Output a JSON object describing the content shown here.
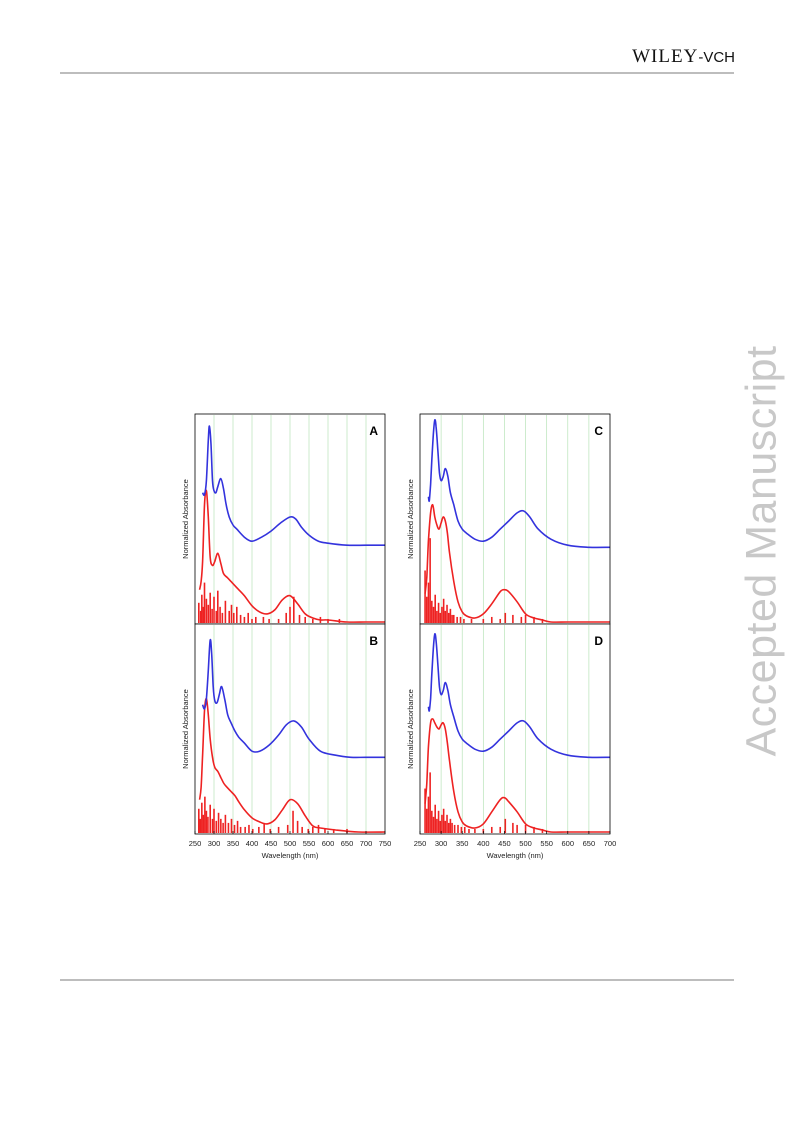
{
  "header": {
    "logo_wiley": "WILEY",
    "logo_vch": "-VCH"
  },
  "watermark": "Accepted Manuscript",
  "chart_data": [
    {
      "type": "line",
      "panel": "A",
      "xlim": [
        250,
        750
      ],
      "xlabel": "",
      "ylabel": "Normalized Absorbance",
      "xticks": [],
      "grid": true,
      "line_colors": {
        "upper": "#3333dd",
        "lower": "#ee2222"
      },
      "upper": {
        "x": [
          270,
          275,
          280,
          285,
          288,
          292,
          296,
          300,
          305,
          310,
          318,
          325,
          332,
          340,
          350,
          360,
          380,
          400,
          425,
          450,
          475,
          500,
          515,
          530,
          550,
          575,
          600,
          650,
          700,
          750
        ],
        "y": [
          0.64,
          0.63,
          0.7,
          0.9,
          0.97,
          0.88,
          0.7,
          0.65,
          0.64,
          0.67,
          0.71,
          0.66,
          0.58,
          0.52,
          0.48,
          0.46,
          0.42,
          0.4,
          0.42,
          0.45,
          0.49,
          0.52,
          0.51,
          0.47,
          0.43,
          0.4,
          0.39,
          0.38,
          0.38,
          0.38
        ]
      },
      "lower": {
        "x": [
          262,
          266,
          270,
          275,
          280,
          285,
          290,
          296,
          302,
          310,
          318,
          325,
          335,
          345,
          360,
          380,
          400,
          420,
          440,
          460,
          480,
          500,
          520,
          540,
          560,
          580,
          600,
          650,
          700,
          750
        ],
        "y": [
          0.16,
          0.2,
          0.3,
          0.58,
          0.65,
          0.52,
          0.32,
          0.28,
          0.3,
          0.34,
          0.29,
          0.24,
          0.22,
          0.2,
          0.17,
          0.13,
          0.08,
          0.05,
          0.04,
          0.06,
          0.11,
          0.13,
          0.09,
          0.04,
          0.02,
          0.01,
          0.01,
          0.0,
          0.0,
          0.0
        ]
      },
      "sticks": {
        "x": [
          260,
          265,
          268,
          272,
          275,
          280,
          285,
          290,
          295,
          300,
          306,
          310,
          316,
          322,
          330,
          340,
          346,
          352,
          360,
          370,
          380,
          390,
          400,
          410,
          430,
          445,
          470,
          490,
          500,
          510,
          525,
          540,
          560,
          580,
          600,
          630
        ],
        "y": [
          0.1,
          0.06,
          0.14,
          0.08,
          0.2,
          0.12,
          0.09,
          0.15,
          0.07,
          0.13,
          0.06,
          0.16,
          0.08,
          0.05,
          0.11,
          0.06,
          0.09,
          0.05,
          0.08,
          0.04,
          0.03,
          0.05,
          0.02,
          0.03,
          0.03,
          0.02,
          0.02,
          0.05,
          0.08,
          0.13,
          0.04,
          0.03,
          0.02,
          0.03,
          0.02,
          0.02
        ]
      }
    },
    {
      "type": "line",
      "panel": "B",
      "xlim": [
        250,
        750
      ],
      "xlabel": "Wavelength (nm)",
      "ylabel": "Normalized Absorbance",
      "xticks": [
        250,
        300,
        350,
        400,
        450,
        500,
        550,
        600,
        650,
        700,
        750
      ],
      "grid": true,
      "line_colors": {
        "upper": "#3333dd",
        "lower": "#ee2222"
      },
      "upper": {
        "x": [
          270,
          275,
          280,
          285,
          290,
          294,
          298,
          302,
          308,
          314,
          320,
          328,
          336,
          345,
          355,
          365,
          380,
          400,
          420,
          445,
          470,
          490,
          510,
          530,
          550,
          580,
          620,
          660,
          700,
          750
        ],
        "y": [
          0.63,
          0.61,
          0.66,
          0.8,
          0.95,
          0.88,
          0.72,
          0.65,
          0.64,
          0.68,
          0.72,
          0.66,
          0.58,
          0.54,
          0.5,
          0.47,
          0.44,
          0.4,
          0.4,
          0.43,
          0.48,
          0.53,
          0.55,
          0.52,
          0.46,
          0.4,
          0.38,
          0.37,
          0.37,
          0.37
        ]
      },
      "lower": {
        "x": [
          262,
          266,
          270,
          275,
          280,
          285,
          290,
          296,
          302,
          310,
          318,
          326,
          335,
          345,
          355,
          365,
          380,
          400,
          420,
          440,
          460,
          480,
          500,
          520,
          540,
          560,
          580,
          620,
          680,
          750
        ],
        "y": [
          0.16,
          0.22,
          0.38,
          0.6,
          0.66,
          0.58,
          0.46,
          0.37,
          0.32,
          0.3,
          0.27,
          0.24,
          0.22,
          0.2,
          0.18,
          0.15,
          0.11,
          0.07,
          0.05,
          0.04,
          0.06,
          0.11,
          0.16,
          0.14,
          0.08,
          0.03,
          0.02,
          0.01,
          0.0,
          0.0
        ]
      },
      "sticks": {
        "x": [
          260,
          264,
          268,
          272,
          276,
          280,
          284,
          290,
          296,
          300,
          306,
          312,
          318,
          324,
          330,
          338,
          346,
          354,
          362,
          370,
          382,
          392,
          402,
          418,
          432,
          448,
          470,
          494,
          508,
          520,
          532,
          548,
          560,
          575,
          592,
          615,
          650
        ],
        "y": [
          0.12,
          0.07,
          0.15,
          0.09,
          0.18,
          0.11,
          0.08,
          0.14,
          0.07,
          0.12,
          0.06,
          0.1,
          0.07,
          0.05,
          0.09,
          0.05,
          0.07,
          0.04,
          0.06,
          0.03,
          0.03,
          0.04,
          0.02,
          0.03,
          0.05,
          0.02,
          0.03,
          0.04,
          0.11,
          0.06,
          0.03,
          0.02,
          0.03,
          0.04,
          0.02,
          0.02,
          0.02
        ]
      }
    },
    {
      "type": "line",
      "panel": "C",
      "xlim": [
        250,
        700
      ],
      "xlabel": "",
      "ylabel": "Normalized Absorbance",
      "xticks": [],
      "grid": true,
      "line_colors": {
        "upper": "#3333dd",
        "lower": "#ee2222"
      },
      "upper": {
        "x": [
          270,
          272,
          275,
          278,
          282,
          285,
          288,
          292,
          296,
          300,
          305,
          310,
          316,
          322,
          330,
          340,
          350,
          360,
          380,
          400,
          420,
          440,
          460,
          480,
          495,
          510,
          530,
          560,
          600,
          650,
          700
        ],
        "y": [
          0.62,
          0.6,
          0.68,
          0.8,
          0.94,
          1.0,
          0.97,
          0.86,
          0.74,
          0.7,
          0.72,
          0.76,
          0.72,
          0.64,
          0.58,
          0.5,
          0.46,
          0.44,
          0.41,
          0.4,
          0.42,
          0.46,
          0.5,
          0.54,
          0.55,
          0.52,
          0.46,
          0.41,
          0.38,
          0.37,
          0.37
        ]
      },
      "lower": {
        "x": [
          262,
          266,
          270,
          275,
          280,
          285,
          290,
          295,
          300,
          305,
          310,
          315,
          320,
          330,
          340,
          350,
          360,
          380,
          400,
          420,
          440,
          450,
          460,
          480,
          500,
          520,
          540,
          560,
          600,
          650,
          700
        ],
        "y": [
          0.14,
          0.22,
          0.4,
          0.54,
          0.58,
          0.52,
          0.48,
          0.46,
          0.49,
          0.52,
          0.5,
          0.44,
          0.34,
          0.2,
          0.1,
          0.05,
          0.03,
          0.02,
          0.04,
          0.09,
          0.15,
          0.16,
          0.15,
          0.1,
          0.04,
          0.02,
          0.01,
          0.0,
          0.0,
          0.0,
          0.0
        ]
      },
      "sticks": {
        "x": [
          262,
          266,
          270,
          274,
          278,
          282,
          286,
          290,
          294,
          298,
          302,
          306,
          310,
          314,
          318,
          322,
          326,
          330,
          338,
          346,
          354,
          372,
          400,
          420,
          440,
          452,
          470,
          490,
          500,
          520,
          540
        ],
        "y": [
          0.26,
          0.13,
          0.2,
          0.42,
          0.11,
          0.08,
          0.14,
          0.06,
          0.1,
          0.05,
          0.08,
          0.12,
          0.06,
          0.09,
          0.05,
          0.07,
          0.04,
          0.04,
          0.03,
          0.03,
          0.02,
          0.02,
          0.02,
          0.03,
          0.02,
          0.05,
          0.04,
          0.03,
          0.04,
          0.03,
          0.02
        ]
      }
    },
    {
      "type": "line",
      "panel": "D",
      "xlim": [
        250,
        700
      ],
      "xlabel": "Wavelength (nm)",
      "ylabel": "Normalized Absorbance",
      "xticks": [
        250,
        300,
        350,
        400,
        450,
        500,
        550,
        600,
        650,
        700
      ],
      "grid": true,
      "line_colors": {
        "upper": "#3333dd",
        "lower": "#ee2222"
      },
      "upper": {
        "x": [
          270,
          272,
          275,
          278,
          282,
          285,
          288,
          292,
          296,
          300,
          305,
          310,
          316,
          322,
          330,
          340,
          350,
          360,
          380,
          400,
          420,
          440,
          460,
          480,
          495,
          510,
          530,
          560,
          600,
          650,
          700
        ],
        "y": [
          0.62,
          0.6,
          0.66,
          0.78,
          0.92,
          0.98,
          0.95,
          0.84,
          0.72,
          0.68,
          0.7,
          0.74,
          0.7,
          0.63,
          0.57,
          0.5,
          0.46,
          0.44,
          0.41,
          0.4,
          0.42,
          0.46,
          0.5,
          0.54,
          0.55,
          0.52,
          0.46,
          0.41,
          0.38,
          0.37,
          0.37
        ]
      },
      "lower": {
        "x": [
          262,
          266,
          270,
          275,
          280,
          285,
          290,
          295,
          300,
          305,
          310,
          315,
          320,
          330,
          340,
          350,
          360,
          380,
          400,
          420,
          440,
          450,
          460,
          480,
          500,
          520,
          540,
          560,
          600,
          650,
          700
        ],
        "y": [
          0.14,
          0.24,
          0.42,
          0.54,
          0.56,
          0.54,
          0.52,
          0.51,
          0.53,
          0.54,
          0.51,
          0.44,
          0.35,
          0.2,
          0.1,
          0.05,
          0.03,
          0.02,
          0.04,
          0.1,
          0.16,
          0.17,
          0.15,
          0.1,
          0.04,
          0.02,
          0.01,
          0.0,
          0.0,
          0.0,
          0.0
        ]
      },
      "sticks": {
        "x": [
          262,
          266,
          270,
          274,
          278,
          282,
          286,
          290,
          294,
          298,
          302,
          306,
          310,
          314,
          318,
          322,
          326,
          332,
          340,
          348,
          356,
          366,
          380,
          400,
          420,
          440,
          452,
          470,
          480,
          500,
          520,
          540
        ],
        "y": [
          0.22,
          0.12,
          0.18,
          0.3,
          0.11,
          0.08,
          0.14,
          0.07,
          0.11,
          0.06,
          0.09,
          0.12,
          0.06,
          0.09,
          0.05,
          0.07,
          0.05,
          0.04,
          0.04,
          0.03,
          0.03,
          0.02,
          0.02,
          0.02,
          0.03,
          0.03,
          0.07,
          0.05,
          0.04,
          0.04,
          0.03,
          0.02
        ]
      }
    }
  ]
}
